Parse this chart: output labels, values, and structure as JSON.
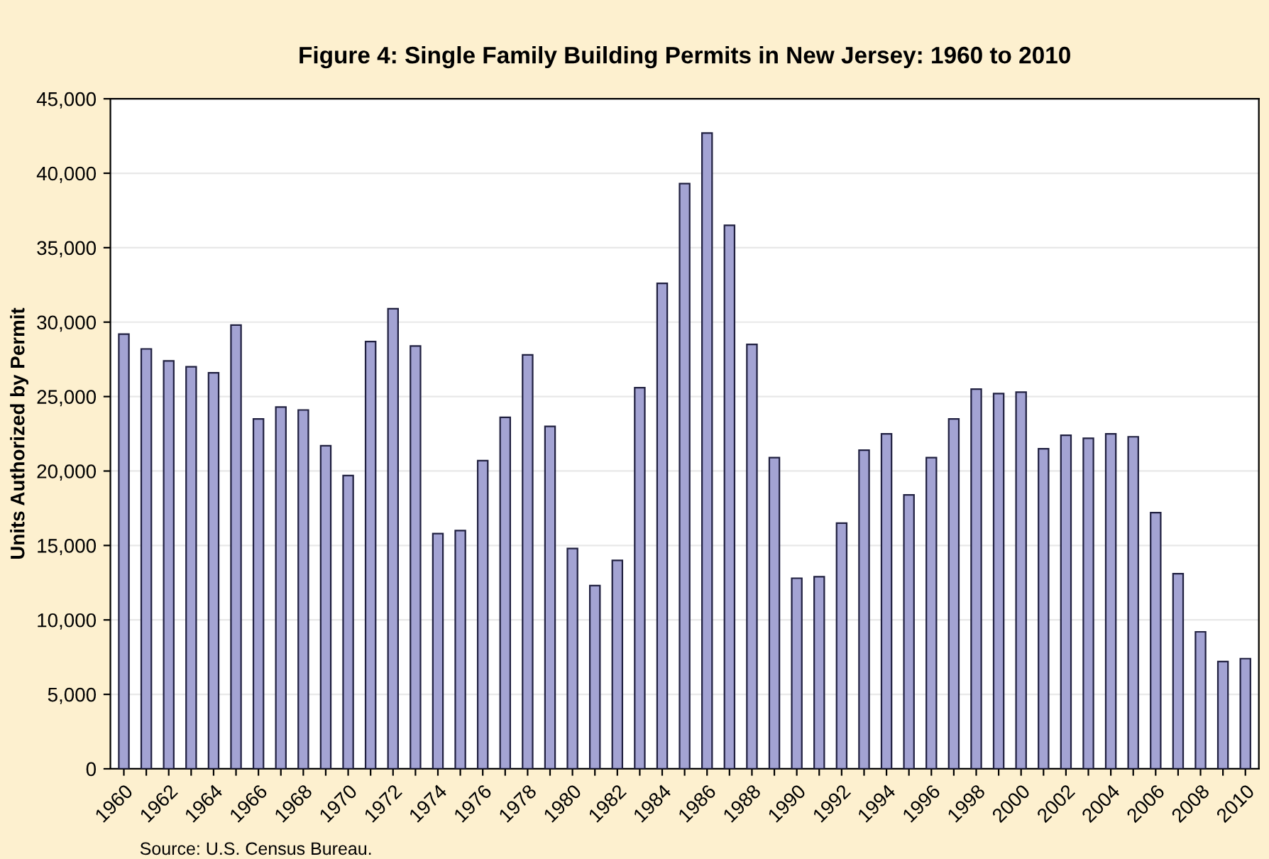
{
  "chart_data": {
    "type": "bar",
    "title": "Figure 4: Single Family Building Permits in New Jersey: 1960 to 2010",
    "ylabel": "Units Authorized by Permit",
    "categories": [
      "1960",
      null,
      "1962",
      null,
      "1964",
      null,
      "1966",
      null,
      "1968",
      null,
      "1970",
      null,
      "1972",
      null,
      "1974",
      null,
      "1976",
      null,
      "1978",
      null,
      "1980",
      null,
      "1982",
      null,
      "1984",
      null,
      "1986",
      null,
      "1988",
      null,
      "1990",
      null,
      "1992",
      null,
      "1994",
      null,
      "1996",
      null,
      "1998",
      null,
      "2000",
      null,
      "2002",
      null,
      "2004",
      null,
      "2006",
      null,
      "2008",
      null,
      "2010"
    ],
    "values": [
      29200,
      28200,
      27400,
      27000,
      26600,
      29800,
      23500,
      24300,
      24100,
      21700,
      19700,
      28700,
      30900,
      28400,
      15800,
      16000,
      20700,
      23600,
      27800,
      23000,
      14800,
      12300,
      14000,
      25600,
      32600,
      39300,
      42700,
      36500,
      28500,
      20900,
      12800,
      12900,
      16500,
      21400,
      22500,
      18400,
      20900,
      23500,
      25500,
      25200,
      25300,
      21500,
      22400,
      22200,
      22500,
      22300,
      17200,
      13100,
      9200,
      7200,
      7400
    ],
    "color": "#a3a3d3",
    "ylim": [
      0,
      45000
    ],
    "yticks": [
      {
        "value": 0,
        "label": "0"
      },
      {
        "value": 5000,
        "label": "5,000"
      },
      {
        "value": 10000,
        "label": "10,000"
      },
      {
        "value": 15000,
        "label": "15,000"
      },
      {
        "value": 20000,
        "label": "20,000"
      },
      {
        "value": 25000,
        "label": "25,000"
      },
      {
        "value": 30000,
        "label": "30,000"
      },
      {
        "value": 35000,
        "label": "35,000"
      },
      {
        "value": 40000,
        "label": "40,000"
      },
      {
        "value": 45000,
        "label": "45,000"
      }
    ],
    "grid": "y",
    "annotations": [
      "Source: U.S. Census Bureau."
    ]
  }
}
